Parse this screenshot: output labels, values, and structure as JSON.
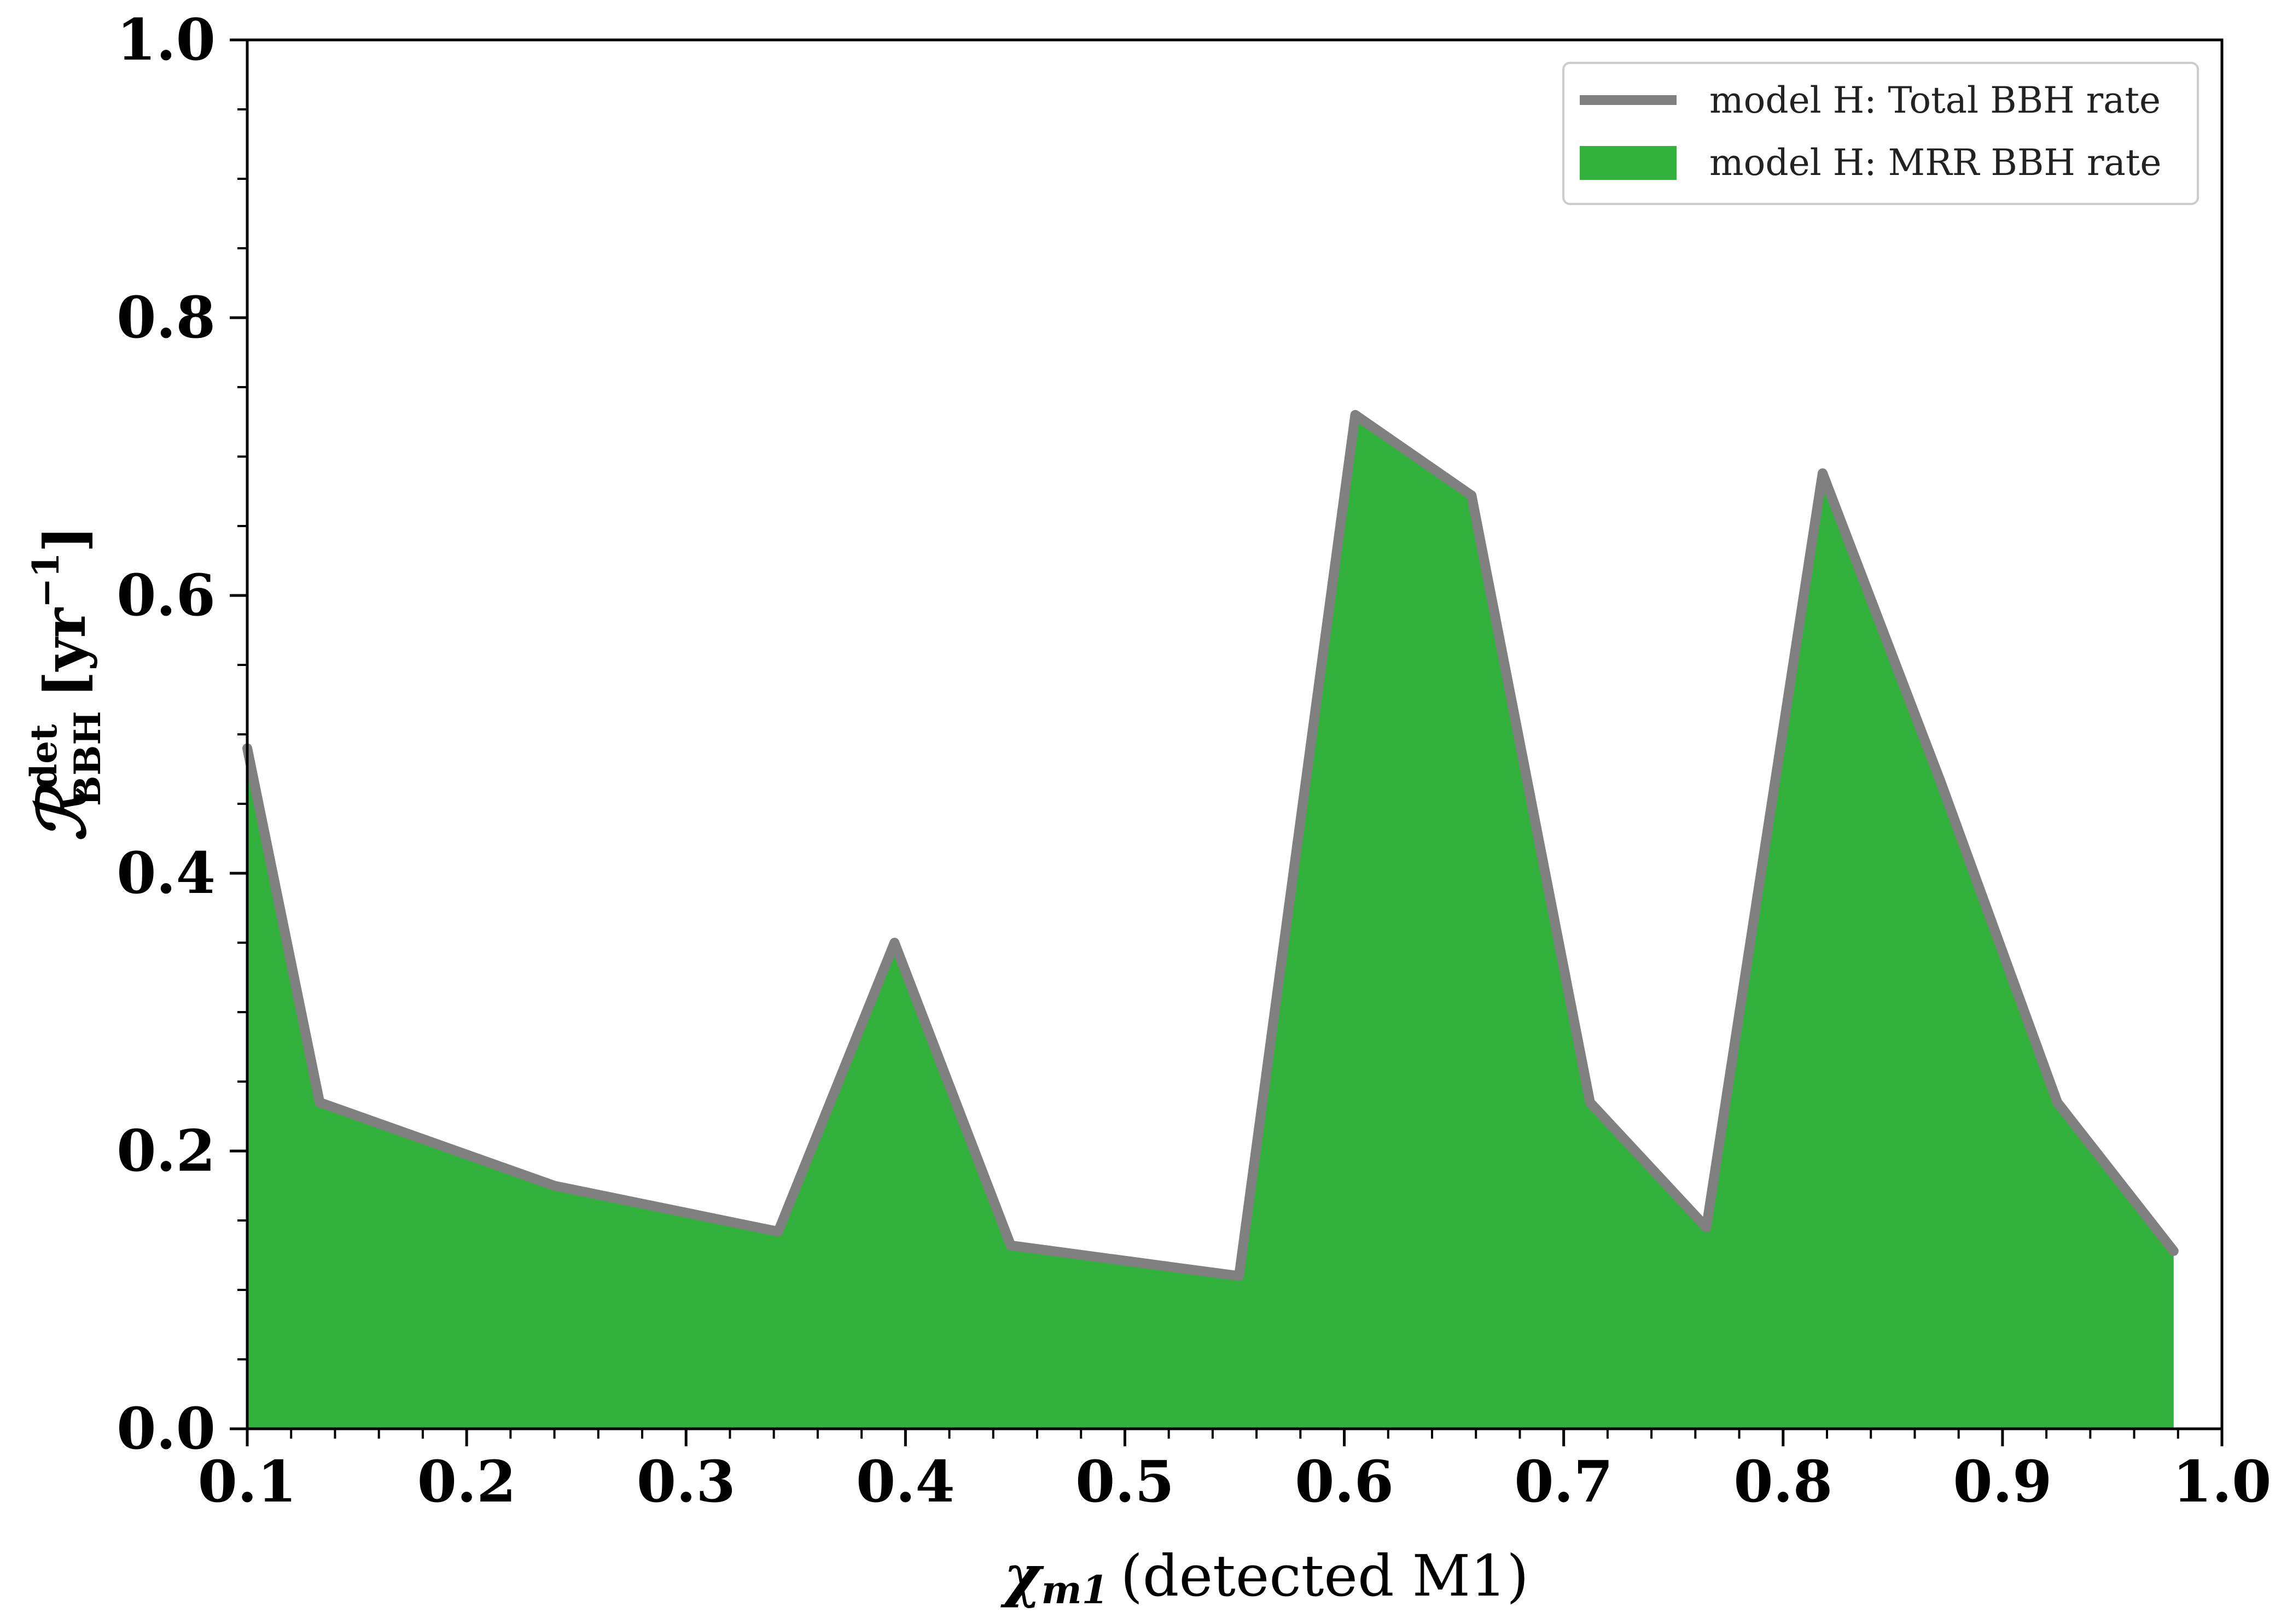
{
  "chart_data": {
    "type": "area",
    "x": [
      0.1,
      0.133,
      0.24,
      0.342,
      0.395,
      0.448,
      0.552,
      0.605,
      0.658,
      0.712,
      0.765,
      0.818,
      0.872,
      0.925,
      0.978
    ],
    "series": [
      {
        "name": "model H: Total BBH rate",
        "style": "line",
        "color": "#808080",
        "values": [
          0.49,
          0.235,
          0.175,
          0.142,
          0.35,
          0.132,
          0.11,
          0.73,
          0.672,
          0.235,
          0.145,
          0.688,
          0.465,
          0.235,
          0.128
        ]
      },
      {
        "name": "model H: MRR BBH rate",
        "style": "fill",
        "color": "#33b13d",
        "values": [
          0.49,
          0.235,
          0.175,
          0.142,
          0.35,
          0.132,
          0.11,
          0.73,
          0.672,
          0.235,
          0.145,
          0.688,
          0.465,
          0.235,
          0.128
        ]
      }
    ],
    "xlabel": {
      "symbol": "χ",
      "subscript": "m1",
      "text": "(detected M1)"
    },
    "ylabel": {
      "symbol": "ℛ",
      "superscript": "det",
      "subscript": "BBH",
      "unit": "[yr",
      "unit_exp": "−1",
      "unit_close": "]"
    },
    "xlim": [
      0.1,
      1.0
    ],
    "ylim": [
      0.0,
      1.0
    ],
    "xticks": [
      "0.1",
      "0.2",
      "0.3",
      "0.4",
      "0.5",
      "0.6",
      "0.7",
      "0.8",
      "0.9",
      "1.0"
    ],
    "yticks": [
      "0.0",
      "0.2",
      "0.4",
      "0.6",
      "0.8",
      "1.0"
    ],
    "grid": false,
    "legend_position": "top-right"
  }
}
